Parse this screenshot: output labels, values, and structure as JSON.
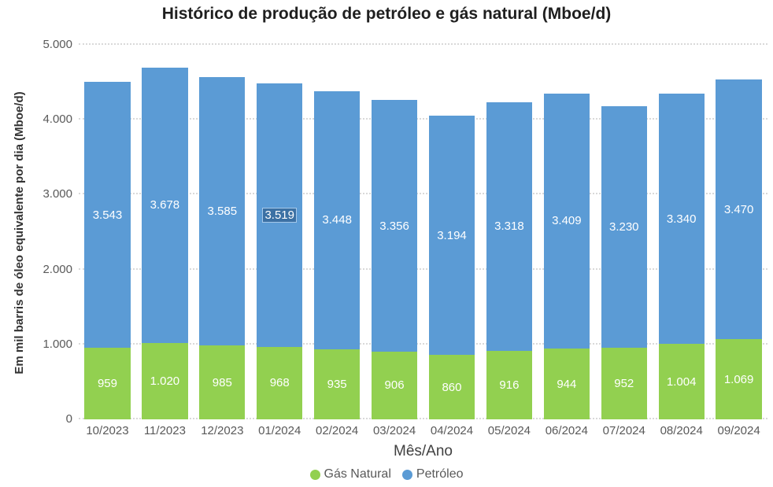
{
  "title": "Histórico de produção de petróleo e gás natural (Mboe/d)",
  "y_axis": {
    "title": "Em mil barris de óleo equivalente por dia (Mboe/d)",
    "ticks": [
      {
        "label": "5.000",
        "value": 5000
      },
      {
        "label": "4.000",
        "value": 4000
      },
      {
        "label": "3.000",
        "value": 3000
      },
      {
        "label": "2.000",
        "value": 2000
      },
      {
        "label": "1.000",
        "value": 1000
      },
      {
        "label": "0",
        "value": 0
      }
    ]
  },
  "x_axis": {
    "title": "Mês/Ano"
  },
  "legend": [
    {
      "label": "Gás Natural",
      "color": "#92d050"
    },
    {
      "label": "Petróleo",
      "color": "#5b9bd5"
    }
  ],
  "chart_data": {
    "type": "bar",
    "stacked": true,
    "title": "Histórico de produção de petróleo e gás natural (Mboe/d)",
    "xlabel": "Mês/Ano",
    "ylabel": "Em mil barris de óleo equivalente por dia (Mboe/d)",
    "ylim": [
      0,
      5000
    ],
    "grid": "dotted-horizontal",
    "legend_position": "bottom",
    "categories": [
      "10/2023",
      "11/2023",
      "12/2023",
      "01/2024",
      "02/2024",
      "03/2024",
      "04/2024",
      "05/2024",
      "06/2024",
      "07/2024",
      "08/2024",
      "09/2024"
    ],
    "series": [
      {
        "name": "Gás Natural",
        "color": "#92d050",
        "values": [
          959,
          1020,
          985,
          968,
          935,
          906,
          860,
          916,
          944,
          952,
          1004,
          1069
        ],
        "labels": [
          "959",
          "1.020",
          "985",
          "968",
          "935",
          "906",
          "860",
          "916",
          "944",
          "952",
          "1.004",
          "1.069"
        ]
      },
      {
        "name": "Petróleo",
        "color": "#5b9bd5",
        "values": [
          3543,
          3678,
          3585,
          3519,
          3448,
          3356,
          3194,
          3318,
          3409,
          3230,
          3340,
          3470
        ],
        "labels": [
          "3.543",
          "3.678",
          "3.585",
          "3.519",
          "3.448",
          "3.356",
          "3.194",
          "3.318",
          "3.409",
          "3.230",
          "3.340",
          "3.470"
        ]
      }
    ],
    "selected_label": {
      "series": "Petróleo",
      "category": "01/2024",
      "value": "3.519"
    }
  }
}
